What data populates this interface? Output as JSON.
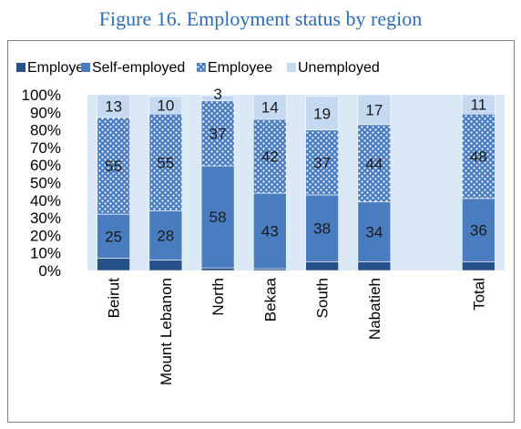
{
  "title": "Figure 16. Employment status by region",
  "chart_data": {
    "type": "bar",
    "stacked": true,
    "categories": [
      "Beirut",
      "Mount Lebanon",
      "North",
      "Bekaa",
      "South",
      "Nabatieh",
      "",
      "Total"
    ],
    "series": [
      {
        "name": "Employer",
        "color": "#24518a",
        "pattern": "solid",
        "values": [
          7,
          6,
          1.5,
          1,
          5,
          5,
          null,
          5
        ],
        "labels": [
          null,
          null,
          null,
          null,
          null,
          null,
          null,
          null
        ]
      },
      {
        "name": "Self-employed",
        "color": "#4a7dc0",
        "pattern": "solid",
        "values": [
          25,
          28,
          58,
          43,
          38,
          34,
          null,
          36
        ],
        "labels": [
          "25",
          "28",
          "58",
          "43",
          "38",
          "34",
          null,
          "36"
        ]
      },
      {
        "name": "Employee",
        "color": "#4a7dc0",
        "pattern": "dots",
        "values": [
          55,
          55,
          37,
          42,
          37,
          44,
          null,
          48
        ],
        "labels": [
          "55",
          "55",
          "37",
          "42",
          "37",
          "44",
          null,
          "48"
        ]
      },
      {
        "name": "Unemployed",
        "color": "#c5d9f1",
        "pattern": "solid",
        "values": [
          13,
          10,
          3,
          14,
          19,
          17,
          null,
          11
        ],
        "labels": [
          "13",
          "10",
          "3",
          "14",
          "19",
          "17",
          null,
          "11"
        ]
      }
    ],
    "yticks": [
      "0%",
      "10%",
      "20%",
      "30%",
      "40%",
      "50%",
      "60%",
      "70%",
      "80%",
      "90%",
      "100%"
    ],
    "ylim": [
      0,
      100
    ],
    "legend_position": "top",
    "plot_background": "#dbe8f6",
    "grid": false
  }
}
